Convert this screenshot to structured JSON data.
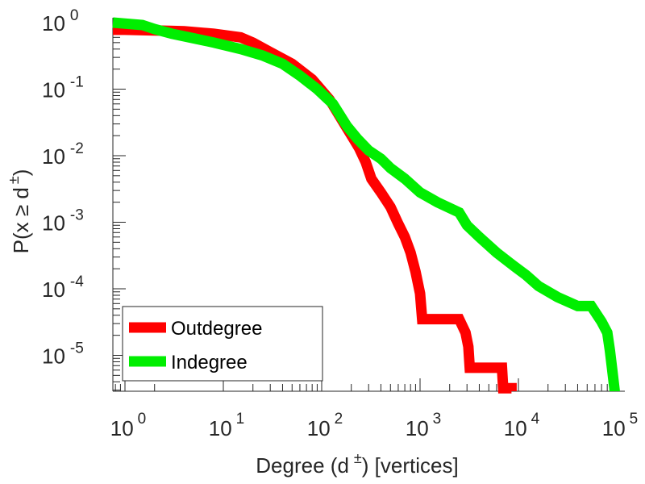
{
  "chart_data": {
    "type": "line",
    "xscale": "log",
    "yscale": "log",
    "xlim": [
      0.7,
      100000
    ],
    "ylim": [
      2.5e-06,
      1.4
    ],
    "xlabel": {
      "main": "Degree (d",
      "sup": "±",
      "tail": ") [vertices]"
    },
    "ylabel": {
      "main": "P(x ≥ d",
      "sup": "±",
      "tail": ")"
    },
    "x_ticks": [
      {
        "value": 1,
        "base": "10",
        "exp": "0"
      },
      {
        "value": 10,
        "base": "10",
        "exp": "1"
      },
      {
        "value": 100,
        "base": "10",
        "exp": "2"
      },
      {
        "value": 1000,
        "base": "10",
        "exp": "3"
      },
      {
        "value": 10000,
        "base": "10",
        "exp": "4"
      },
      {
        "value": 100000,
        "base": "10",
        "exp": "5"
      }
    ],
    "y_ticks": [
      {
        "value": 1,
        "base": "10",
        "exp": "0"
      },
      {
        "value": 0.1,
        "base": "10",
        "exp": "-1"
      },
      {
        "value": 0.01,
        "base": "10",
        "exp": "-2"
      },
      {
        "value": 0.001,
        "base": "10",
        "exp": "-3"
      },
      {
        "value": 0.0001,
        "base": "10",
        "exp": "-4"
      },
      {
        "value": 1e-05,
        "base": "10",
        "exp": "-5"
      }
    ],
    "legend": {
      "position": "bottom-left"
    },
    "series": [
      {
        "name": "Outdegree",
        "color": "#ff0000",
        "points": [
          [
            0.7,
            0.78
          ],
          [
            1,
            0.78
          ],
          [
            2,
            0.76
          ],
          [
            4,
            0.74
          ],
          [
            8,
            0.68
          ],
          [
            15,
            0.6
          ],
          [
            20,
            0.5
          ],
          [
            30,
            0.36
          ],
          [
            50,
            0.24
          ],
          [
            80,
            0.14
          ],
          [
            120,
            0.07
          ],
          [
            170,
            0.03
          ],
          [
            210,
            0.018
          ],
          [
            240,
            0.013
          ],
          [
            280,
            0.008
          ],
          [
            320,
            0.0045
          ],
          [
            400,
            0.0028
          ],
          [
            500,
            0.0017
          ],
          [
            600,
            0.00095
          ],
          [
            700,
            0.0006
          ],
          [
            800,
            0.00035
          ],
          [
            900,
            0.00018
          ],
          [
            1000,
            8.5e-05
          ],
          [
            1050,
            3.5e-05
          ],
          [
            1500,
            3.5e-05
          ],
          [
            2500,
            3.5e-05
          ],
          [
            2900,
            2.2e-05
          ],
          [
            3100,
            1.35e-05
          ],
          [
            3200,
            6.5e-06
          ],
          [
            5000,
            6.5e-06
          ],
          [
            6800,
            6.5e-06
          ],
          [
            7000,
            3.2e-06
          ],
          [
            8500,
            3.2e-06
          ],
          [
            8500,
            2.5e-06
          ]
        ]
      },
      {
        "name": "Indegree",
        "color": "#00ee00",
        "points": [
          [
            0.7,
            1.0
          ],
          [
            1.5,
            0.92
          ],
          [
            2,
            0.8
          ],
          [
            3,
            0.68
          ],
          [
            5,
            0.58
          ],
          [
            8,
            0.5
          ],
          [
            15,
            0.4
          ],
          [
            25,
            0.32
          ],
          [
            40,
            0.24
          ],
          [
            60,
            0.16
          ],
          [
            90,
            0.1
          ],
          [
            130,
            0.06
          ],
          [
            180,
            0.028
          ],
          [
            230,
            0.018
          ],
          [
            300,
            0.012
          ],
          [
            400,
            0.009
          ],
          [
            500,
            0.0065
          ],
          [
            700,
            0.0045
          ],
          [
            1000,
            0.0028
          ],
          [
            1500,
            0.002
          ],
          [
            2500,
            0.0014
          ],
          [
            3000,
            0.0009
          ],
          [
            4000,
            0.0006
          ],
          [
            6000,
            0.00035
          ],
          [
            9000,
            0.00022
          ],
          [
            12000,
            0.00016
          ],
          [
            16000,
            0.00011
          ],
          [
            25000,
            7.5e-05
          ],
          [
            40000,
            5.5e-05
          ],
          [
            55000,
            5.5e-05
          ],
          [
            70000,
            3.2e-05
          ],
          [
            80000,
            2.2e-05
          ],
          [
            85000,
            1.2e-05
          ],
          [
            90000,
            6e-06
          ],
          [
            95000,
            3e-06
          ],
          [
            95000,
            2.5e-06
          ]
        ]
      }
    ]
  }
}
